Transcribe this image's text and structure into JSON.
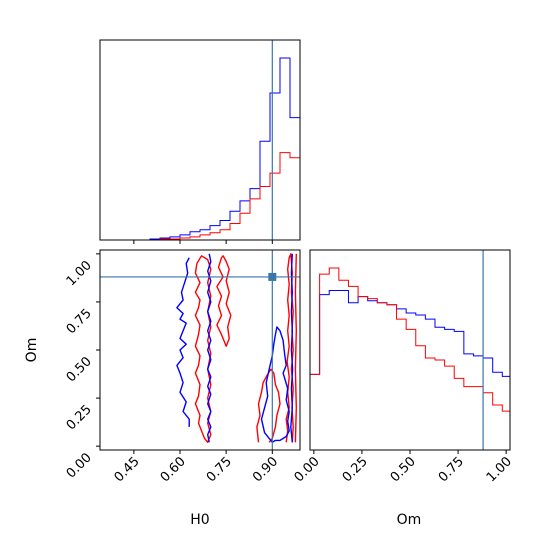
{
  "chart_data": {
    "type": "corner",
    "parameters": [
      "H0",
      "Om"
    ],
    "truth": {
      "H0": 0.9,
      "Om": 0.88
    },
    "colors": {
      "series_a": "#0000ff",
      "series_b": "#ff0000",
      "truth": "#3b76a8"
    },
    "axes": {
      "H0": {
        "label": "H0",
        "lim": [
          0.34,
          0.99
        ],
        "ticks": [
          0.45,
          0.6,
          0.75,
          0.9
        ],
        "tick_labels": [
          "0.45",
          "0.60",
          "0.75",
          "0.90"
        ]
      },
      "Om": {
        "label": "Om",
        "lim": [
          -0.02,
          1.02
        ],
        "ticks": [
          0.0,
          0.25,
          0.5,
          0.75,
          1.0
        ],
        "tick_labels": [
          "0.00",
          "0.25",
          "0.50",
          "0.75",
          "1.00"
        ]
      }
    },
    "hist_H0": {
      "bin_edges": [
        0.34,
        0.3725,
        0.405,
        0.4375,
        0.47,
        0.5025,
        0.535,
        0.5675,
        0.6,
        0.6325,
        0.665,
        0.6975,
        0.73,
        0.7625,
        0.795,
        0.8275,
        0.86,
        0.8925,
        0.925,
        0.9575,
        0.99
      ],
      "blue": [
        0,
        0,
        0,
        0,
        0,
        1,
        2,
        3,
        5,
        8,
        10,
        14,
        19,
        28,
        38,
        50,
        96,
        143,
        177,
        119
      ],
      "red": [
        0,
        0,
        0,
        0,
        0,
        0,
        1,
        1,
        2,
        3,
        5,
        7,
        10,
        16,
        26,
        40,
        52,
        65,
        85,
        80
      ]
    },
    "hist_Om": {
      "bin_edges": [
        -0.02,
        0.03,
        0.08,
        0.13,
        0.18,
        0.23,
        0.28,
        0.33,
        0.38,
        0.43,
        0.48,
        0.53,
        0.58,
        0.63,
        0.68,
        0.73,
        0.78,
        0.83,
        0.88,
        0.93,
        0.98,
        1.02
      ],
      "blue": [
        37,
        76,
        78,
        78,
        72,
        75,
        73,
        72,
        71,
        69,
        67,
        66,
        64,
        60,
        59,
        58,
        47,
        46,
        45,
        38,
        36
      ],
      "red": [
        37,
        86,
        89,
        83,
        80,
        75,
        74,
        72,
        71,
        64,
        59,
        51,
        45,
        44,
        41,
        35,
        31,
        31,
        28,
        22,
        19
      ]
    },
    "contours": {
      "blue": [
        [
          [
            0.63,
            0.98
          ],
          [
            0.62,
            0.95
          ],
          [
            0.625,
            0.9
          ],
          [
            0.615,
            0.85
          ],
          [
            0.605,
            0.8
          ],
          [
            0.61,
            0.76
          ],
          [
            0.59,
            0.72
          ],
          [
            0.61,
            0.69
          ],
          [
            0.6,
            0.66
          ],
          [
            0.62,
            0.64
          ],
          [
            0.61,
            0.6
          ],
          [
            0.6,
            0.56
          ],
          [
            0.62,
            0.53
          ],
          [
            0.6,
            0.5
          ],
          [
            0.61,
            0.46
          ],
          [
            0.59,
            0.42
          ],
          [
            0.6,
            0.38
          ],
          [
            0.61,
            0.33
          ],
          [
            0.6,
            0.28
          ],
          [
            0.62,
            0.23
          ],
          [
            0.61,
            0.18
          ],
          [
            0.63,
            0.14
          ],
          [
            0.63,
            0.1
          ]
        ],
        [
          [
            0.695,
            0.02
          ],
          [
            0.69,
            0.06
          ],
          [
            0.7,
            0.1
          ],
          [
            0.69,
            0.14
          ],
          [
            0.7,
            0.18
          ],
          [
            0.69,
            0.22
          ],
          [
            0.7,
            0.27
          ],
          [
            0.69,
            0.31
          ],
          [
            0.7,
            0.36
          ],
          [
            0.69,
            0.4
          ],
          [
            0.7,
            0.45
          ],
          [
            0.69,
            0.5
          ],
          [
            0.7,
            0.55
          ],
          [
            0.69,
            0.6
          ],
          [
            0.7,
            0.65
          ],
          [
            0.69,
            0.7
          ],
          [
            0.7,
            0.75
          ],
          [
            0.69,
            0.8
          ],
          [
            0.7,
            0.86
          ],
          [
            0.69,
            0.91
          ],
          [
            0.7,
            0.96
          ],
          [
            0.695,
            1.0
          ]
        ],
        [
          [
            0.9,
            0.02
          ],
          [
            0.875,
            0.07
          ],
          [
            0.865,
            0.14
          ],
          [
            0.875,
            0.2
          ],
          [
            0.885,
            0.26
          ],
          [
            0.88,
            0.33
          ],
          [
            0.89,
            0.4
          ],
          [
            0.9,
            0.47
          ],
          [
            0.905,
            0.53
          ],
          [
            0.91,
            0.58
          ],
          [
            0.915,
            0.62
          ],
          [
            0.925,
            0.6
          ],
          [
            0.935,
            0.55
          ],
          [
            0.94,
            0.48
          ],
          [
            0.945,
            0.42
          ],
          [
            0.935,
            0.38
          ],
          [
            0.95,
            0.3
          ],
          [
            0.945,
            0.24
          ],
          [
            0.955,
            0.18
          ],
          [
            0.95,
            0.13
          ],
          [
            0.955,
            0.08
          ],
          [
            0.945,
            0.05
          ],
          [
            0.925,
            0.03
          ],
          [
            0.91,
            0.03
          ],
          [
            0.9,
            0.02
          ]
        ],
        [
          [
            0.965,
            0.02
          ],
          [
            0.96,
            0.1
          ],
          [
            0.965,
            0.2
          ],
          [
            0.962,
            0.3
          ],
          [
            0.966,
            0.4
          ],
          [
            0.962,
            0.5
          ],
          [
            0.965,
            0.6
          ],
          [
            0.962,
            0.7
          ],
          [
            0.965,
            0.8
          ],
          [
            0.962,
            0.9
          ],
          [
            0.965,
            1.0
          ]
        ]
      ],
      "red": [
        [
          [
            0.655,
            0.95
          ],
          [
            0.65,
            0.9
          ],
          [
            0.665,
            0.85
          ],
          [
            0.65,
            0.8
          ],
          [
            0.665,
            0.76
          ],
          [
            0.66,
            0.72
          ],
          [
            0.65,
            0.68
          ],
          [
            0.665,
            0.63
          ],
          [
            0.66,
            0.58
          ],
          [
            0.65,
            0.52
          ],
          [
            0.665,
            0.47
          ],
          [
            0.66,
            0.42
          ],
          [
            0.65,
            0.38
          ],
          [
            0.665,
            0.32
          ],
          [
            0.66,
            0.26
          ],
          [
            0.65,
            0.22
          ],
          [
            0.665,
            0.16
          ],
          [
            0.66,
            0.12
          ],
          [
            0.67,
            0.08
          ],
          [
            0.68,
            0.04
          ],
          [
            0.69,
            0.02
          ],
          [
            0.7,
            0.06
          ],
          [
            0.69,
            0.12
          ],
          [
            0.7,
            0.18
          ],
          [
            0.69,
            0.25
          ],
          [
            0.7,
            0.32
          ],
          [
            0.69,
            0.4
          ],
          [
            0.7,
            0.48
          ],
          [
            0.69,
            0.55
          ],
          [
            0.7,
            0.62
          ],
          [
            0.69,
            0.7
          ],
          [
            0.7,
            0.78
          ],
          [
            0.69,
            0.85
          ],
          [
            0.7,
            0.92
          ],
          [
            0.69,
            0.97
          ],
          [
            0.67,
            0.99
          ],
          [
            0.655,
            0.95
          ]
        ],
        [
          [
            0.735,
            0.98
          ],
          [
            0.725,
            0.93
          ],
          [
            0.74,
            0.88
          ],
          [
            0.72,
            0.83
          ],
          [
            0.735,
            0.78
          ],
          [
            0.725,
            0.73
          ],
          [
            0.735,
            0.68
          ],
          [
            0.72,
            0.63
          ],
          [
            0.735,
            0.58
          ],
          [
            0.745,
            0.54
          ],
          [
            0.75,
            0.52
          ],
          [
            0.76,
            0.56
          ],
          [
            0.755,
            0.62
          ],
          [
            0.765,
            0.68
          ],
          [
            0.75,
            0.74
          ],
          [
            0.76,
            0.8
          ],
          [
            0.75,
            0.86
          ],
          [
            0.76,
            0.92
          ],
          [
            0.75,
            0.96
          ],
          [
            0.74,
            0.99
          ],
          [
            0.735,
            0.98
          ]
        ],
        [
          [
            0.855,
            0.02
          ],
          [
            0.85,
            0.1
          ],
          [
            0.86,
            0.16
          ],
          [
            0.855,
            0.22
          ],
          [
            0.865,
            0.28
          ],
          [
            0.87,
            0.33
          ],
          [
            0.88,
            0.36
          ],
          [
            0.895,
            0.4
          ],
          [
            0.905,
            0.38
          ],
          [
            0.91,
            0.32
          ],
          [
            0.92,
            0.28
          ],
          [
            0.925,
            0.22
          ],
          [
            0.915,
            0.16
          ],
          [
            0.91,
            0.1
          ],
          [
            0.9,
            0.04
          ],
          [
            0.89,
            0.02
          ]
        ],
        [
          [
            0.945,
            0.02
          ],
          [
            0.95,
            0.08
          ],
          [
            0.945,
            0.14
          ],
          [
            0.955,
            0.2
          ],
          [
            0.95,
            0.28
          ],
          [
            0.955,
            0.36
          ],
          [
            0.948,
            0.44
          ],
          [
            0.955,
            0.52
          ],
          [
            0.95,
            0.6
          ],
          [
            0.955,
            0.68
          ],
          [
            0.95,
            0.76
          ],
          [
            0.955,
            0.84
          ],
          [
            0.95,
            0.92
          ],
          [
            0.955,
            0.98
          ],
          [
            0.96,
            1.0
          ],
          [
            0.965,
            0.9
          ],
          [
            0.962,
            0.8
          ],
          [
            0.968,
            0.7
          ],
          [
            0.964,
            0.6
          ],
          [
            0.968,
            0.5
          ],
          [
            0.962,
            0.4
          ],
          [
            0.968,
            0.3
          ],
          [
            0.964,
            0.2
          ],
          [
            0.968,
            0.1
          ],
          [
            0.965,
            0.02
          ]
        ],
        [
          [
            0.975,
            0.02
          ],
          [
            0.978,
            0.2
          ],
          [
            0.975,
            0.4
          ],
          [
            0.978,
            0.6
          ],
          [
            0.975,
            0.8
          ],
          [
            0.978,
            1.0
          ]
        ]
      ]
    }
  }
}
